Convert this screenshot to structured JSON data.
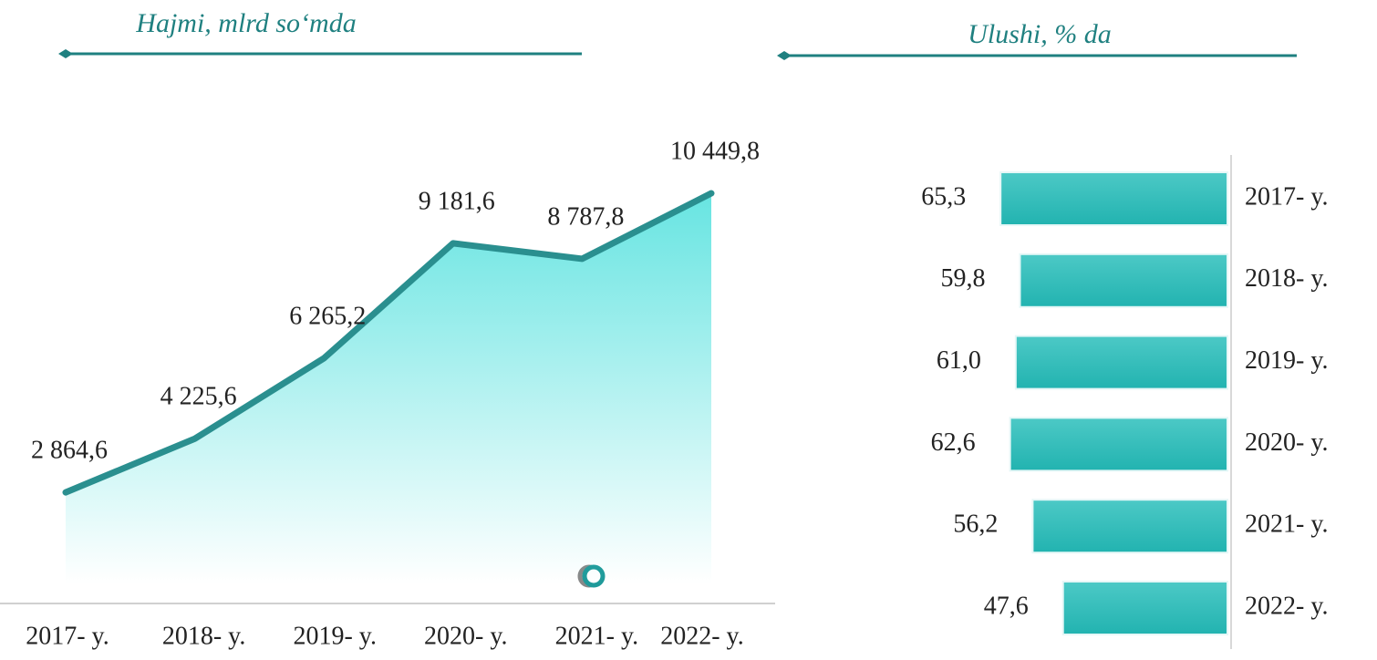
{
  "chart_data": [
    {
      "type": "line",
      "title": "Hajmi, mlrd so‘mda",
      "categories": [
        "2017- y.",
        "2018- y.",
        "2019- y.",
        "2020- y.",
        "2021- y.",
        "2022- y."
      ],
      "values": [
        2864.6,
        4225.6,
        6265.2,
        9181.6,
        8787.8,
        10449.8
      ],
      "value_labels": [
        "2 864,6",
        "4 225,6",
        "6 265,2",
        "9 181,6",
        "8 787,8",
        "10 449,8"
      ],
      "color": "#2a8f8f",
      "ylim": [
        0,
        12000
      ]
    },
    {
      "type": "hbar",
      "title": "Ulushi, % da",
      "categories": [
        "2017- y.",
        "2018- y.",
        "2019- y.",
        "2020- y.",
        "2021- y.",
        "2022- y."
      ],
      "values": [
        65.3,
        59.8,
        61.0,
        62.6,
        56.2,
        47.6
      ],
      "value_labels": [
        "65,3",
        "59,8",
        "61,0",
        "62,6",
        "56,2",
        "47,6"
      ],
      "color": "#2fbcbc",
      "xlim": [
        0,
        70
      ]
    }
  ]
}
